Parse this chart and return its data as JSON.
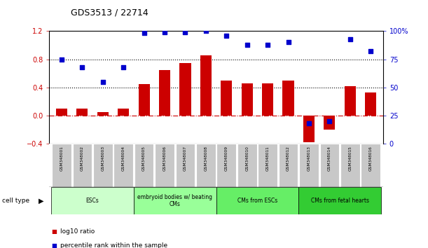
{
  "title": "GDS3513 / 22714",
  "samples": [
    "GSM348001",
    "GSM348002",
    "GSM348003",
    "GSM348004",
    "GSM348005",
    "GSM348006",
    "GSM348007",
    "GSM348008",
    "GSM348009",
    "GSM348010",
    "GSM348011",
    "GSM348012",
    "GSM348013",
    "GSM348014",
    "GSM348015",
    "GSM348016"
  ],
  "log10_ratio": [
    0.1,
    0.1,
    0.05,
    0.1,
    0.45,
    0.65,
    0.75,
    0.85,
    0.5,
    0.46,
    0.46,
    0.5,
    -0.38,
    -0.2,
    0.42,
    0.33
  ],
  "percentile_rank": [
    75,
    68,
    55,
    68,
    98,
    99,
    99,
    100,
    96,
    88,
    88,
    90,
    18,
    20,
    93,
    82
  ],
  "bar_color": "#cc0000",
  "dot_color": "#0000cc",
  "ylim_left": [
    -0.4,
    1.2
  ],
  "ylim_right": [
    0,
    100
  ],
  "yticks_left": [
    -0.4,
    0.0,
    0.4,
    0.8,
    1.2
  ],
  "yticks_right": [
    0,
    25,
    50,
    75,
    100
  ],
  "yticklabels_right": [
    "0",
    "25",
    "50",
    "75",
    "100%"
  ],
  "hlines": [
    0.4,
    0.8
  ],
  "cell_type_groups": [
    {
      "label": "ESCs",
      "start": 0,
      "end": 4,
      "color": "#ccffcc"
    },
    {
      "label": "embryoid bodies w/ beating\nCMs",
      "start": 4,
      "end": 8,
      "color": "#99ff99"
    },
    {
      "label": "CMs from ESCs",
      "start": 8,
      "end": 12,
      "color": "#66ee66"
    },
    {
      "label": "CMs from fetal hearts",
      "start": 12,
      "end": 16,
      "color": "#33cc33"
    }
  ],
  "cell_type_label": "cell type",
  "legend_items": [
    {
      "label": "log10 ratio",
      "color": "#cc0000"
    },
    {
      "label": "percentile rank within the sample",
      "color": "#0000cc"
    }
  ],
  "background_color": "#ffffff",
  "tick_gray_bg": "#c8c8c8"
}
